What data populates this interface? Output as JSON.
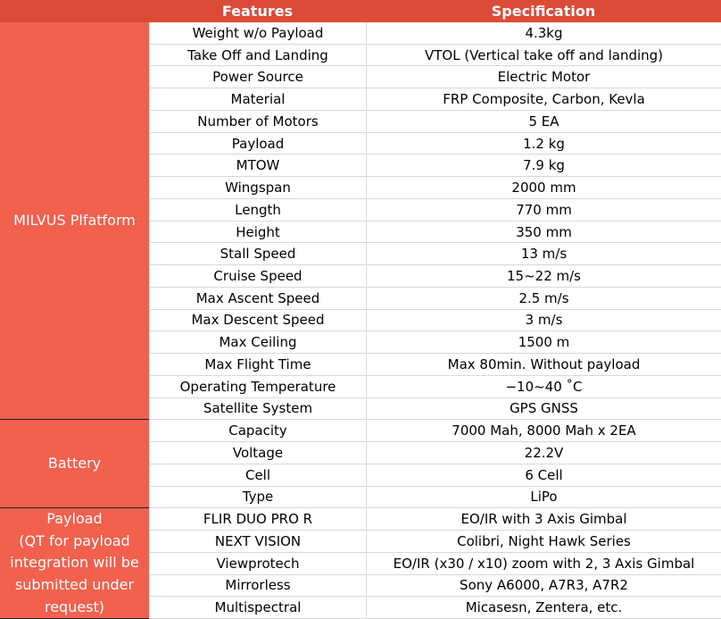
{
  "header": {
    "features": "Features",
    "specification": "Specification"
  },
  "groups": [
    {
      "label": [
        "MILVUS Plfatform"
      ],
      "rows": [
        [
          "Weight w/o Payload",
          "4.3kg"
        ],
        [
          "Take Off and Landing",
          "VTOL (Vertical take off and landing)"
        ],
        [
          "Power Source",
          "Electric Motor"
        ],
        [
          "Material",
          "FRP Composite, Carbon, Kevla"
        ],
        [
          "Number of Motors",
          "5 EA"
        ],
        [
          "Payload",
          "1.2 kg"
        ],
        [
          "MTOW",
          "7.9 kg"
        ],
        [
          "Wingspan",
          "2000 mm"
        ],
        [
          "Length",
          "770 mm"
        ],
        [
          "Height",
          "350 mm"
        ],
        [
          "Stall Speed",
          "13 m/s"
        ],
        [
          "Cruise Speed",
          "15~22 m/s"
        ],
        [
          "Max Ascent Speed",
          "2.5 m/s"
        ],
        [
          "Max Descent Speed",
          "3 m/s"
        ],
        [
          "Max Ceiling",
          "1500 m"
        ],
        [
          "Max Flight Time",
          "Max 80min. Without payload"
        ],
        [
          "Operating Temperature",
          "−10~40 ˚C"
        ],
        [
          "Satellite System",
          "GPS GNSS"
        ]
      ]
    },
    {
      "label": [
        "Battery"
      ],
      "rows": [
        [
          "Capacity",
          "7000 Mah, 8000 Mah x 2EA"
        ],
        [
          "Voltage",
          "22.2V"
        ],
        [
          "Cell",
          "6 Cell"
        ],
        [
          "Type",
          "LiPo"
        ]
      ]
    },
    {
      "label": [
        "Payload",
        "(QT for payload",
        "integration will be",
        "submitted under",
        "request)"
      ],
      "rows": [
        [
          "FLIR DUO PRO R",
          "EO/IR with 3 Axis Gimbal"
        ],
        [
          "NEXT VISION",
          "Colibri, Night Hawk Series"
        ],
        [
          "Viewprotech",
          "EO/IR (x30 / x10) zoom with 2, 3 Axis Gimbal"
        ],
        [
          "Mirrorless",
          "Sony A6000, A7R3, A7R2"
        ],
        [
          "Multispectral",
          "Micasesn, Zentera, etc."
        ]
      ]
    }
  ]
}
